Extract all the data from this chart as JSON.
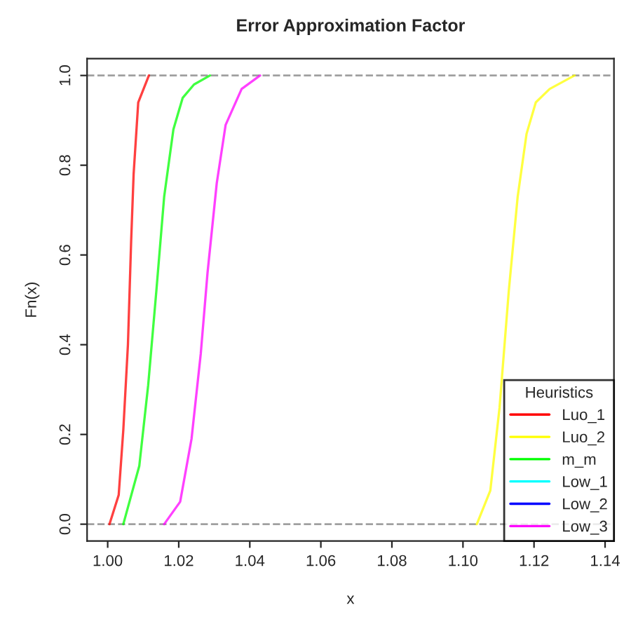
{
  "chart_data": {
    "type": "line",
    "title": "Error Approximation Factor",
    "xlabel": "x",
    "ylabel": "Fn(x)",
    "legend_title": "Heuristics",
    "legend": "bottom right",
    "grid": false,
    "xlim": [
      0.9942,
      1.1425
    ],
    "xticks": [
      {
        "value": 1.0,
        "label": "1.00"
      },
      {
        "value": 1.02,
        "label": "1.02"
      },
      {
        "value": 1.04,
        "label": "1.04"
      },
      {
        "value": 1.06,
        "label": "1.06"
      },
      {
        "value": 1.08,
        "label": "1.08"
      },
      {
        "value": 1.1,
        "label": "1.10"
      },
      {
        "value": 1.12,
        "label": "1.12"
      },
      {
        "value": 1.14,
        "label": "1.14"
      }
    ],
    "ylim": [
      -0.0375,
      1.0375
    ],
    "yticks": [
      {
        "value": 0,
        "label": "0.0"
      },
      0.2,
      0.4,
      0.6,
      0.8,
      {
        "value": 1,
        "label": "1.0"
      }
    ],
    "ref_lines": [
      {
        "axis": "y",
        "value": 0,
        "color": "#a0a0a0",
        "line_style": "dashed"
      },
      {
        "axis": "y",
        "value": 1,
        "color": "#a0a0a0",
        "line_style": "dashed"
      }
    ],
    "series": [
      {
        "name": "Luo_1",
        "color": "#ff0000",
        "x": [
          1.0005,
          1.0031,
          1.0044,
          1.0057,
          1.0066,
          1.0073,
          1.0086,
          1.0116
        ],
        "values": [
          0,
          0.065,
          0.21,
          0.4,
          0.63,
          0.78,
          0.94,
          1
        ]
      },
      {
        "name": "Luo_2",
        "color": "#ffff00",
        "x": [
          1.1039,
          1.1077,
          1.1103,
          1.1129,
          1.1154,
          1.1179,
          1.1205,
          1.1244,
          1.1314
        ],
        "values": [
          0,
          0.075,
          0.26,
          0.52,
          0.73,
          0.87,
          0.94,
          0.97,
          1
        ]
      },
      {
        "name": "m_m",
        "color": "#00ff00",
        "x": [
          1.0044,
          1.0089,
          1.0114,
          1.0137,
          1.0159,
          1.0185,
          1.0211,
          1.0243,
          1.0288
        ],
        "values": [
          0,
          0.13,
          0.31,
          0.52,
          0.73,
          0.88,
          0.95,
          0.98,
          1
        ]
      },
      {
        "name": "Low_1",
        "color": "#00ffff"
      },
      {
        "name": "Low_2",
        "color": "#0000ff"
      },
      {
        "name": "Low_3",
        "color": "#ff00ff",
        "x": [
          1.0159,
          1.0204,
          1.0236,
          1.0262,
          1.0281,
          1.0307,
          1.0332,
          1.0377,
          1.0429
        ],
        "values": [
          0,
          0.05,
          0.19,
          0.38,
          0.56,
          0.76,
          0.89,
          0.97,
          1
        ]
      }
    ]
  }
}
